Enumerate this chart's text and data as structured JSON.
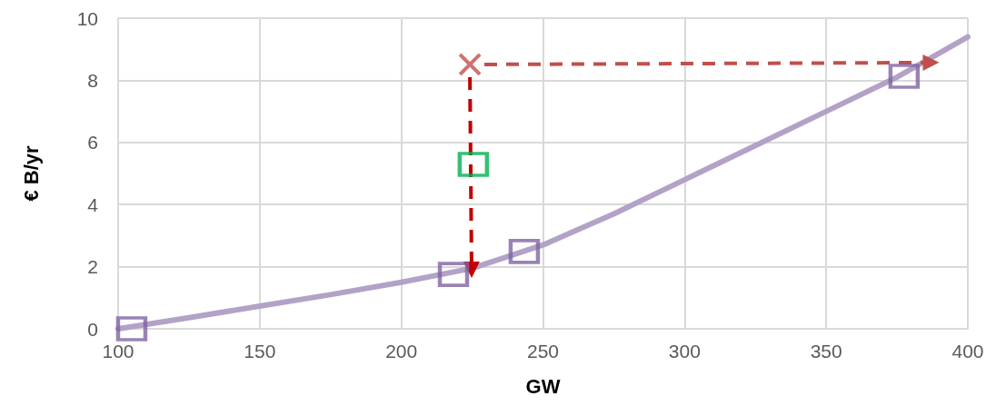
{
  "chart_data": {
    "type": "line",
    "xlabel": "GW",
    "ylabel": "€ B/yr",
    "xlim": [
      100,
      400
    ],
    "xticks": [
      100,
      150,
      200,
      250,
      300,
      350,
      400
    ],
    "ylim": [
      0,
      10
    ],
    "yticks": [
      0,
      2,
      4,
      6,
      8,
      10
    ],
    "grid": true,
    "series": [
      {
        "color": "#b3a2c7",
        "marker": "none",
        "line_style": "solid",
        "x": [
          100,
          125,
          150,
          175,
          200,
          225,
          250,
          275,
          300,
          325,
          350,
          375,
          400
        ],
        "values": [
          0,
          0.36,
          0.73,
          1.1,
          1.5,
          1.95,
          2.7,
          3.7,
          4.8,
          5.9,
          7.0,
          8.1,
          9.4
        ]
      },
      {
        "type": "scatter",
        "color": "#8064a2",
        "marker": "square",
        "x": [
          104.8,
          218.4,
          243.4,
          377.5
        ],
        "values": [
          0,
          1.75,
          2.49,
          8.13
        ]
      },
      {
        "type": "scatter",
        "color": "#00b050",
        "marker": "square",
        "x": [
          225.4
        ],
        "values": [
          5.29
        ]
      },
      {
        "type": "scatter",
        "color": "#c0504d",
        "marker": "cross",
        "x": [
          224.2
        ],
        "values": [
          8.51
        ]
      },
      {
        "color": "#c00000",
        "line_style": "dashed",
        "x": [
          224.2,
          224.8
        ],
        "values": [
          8.1,
          1.9
        ]
      },
      {
        "color": "#c0504d",
        "line_style": "dashed",
        "x": [
          229.3,
          387
        ],
        "values": [
          8.51,
          8.57
        ]
      }
    ]
  }
}
